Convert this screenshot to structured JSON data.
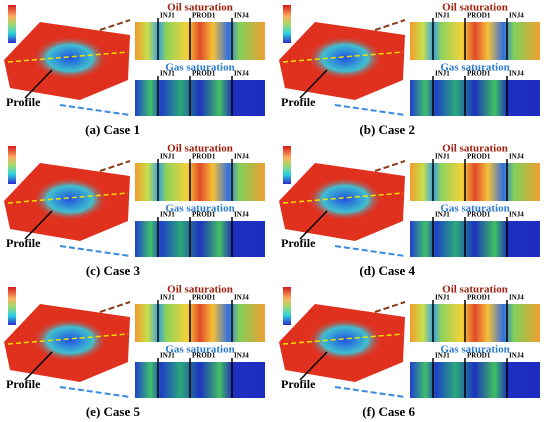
{
  "panels": [
    {
      "caption": "(a) Case 1",
      "oil_label": "Oil saturation",
      "gas_label": "Gas saturation",
      "profile_label": "Profile",
      "wells": [
        "INJ1",
        "PROD1",
        "INJ4"
      ]
    },
    {
      "caption": "(b) Case 2",
      "oil_label": "Oil saturation",
      "gas_label": "Gas saturation",
      "profile_label": "Profile",
      "wells": [
        "INJ1",
        "PROD1",
        "INJ4"
      ]
    },
    {
      "caption": "(c) Case 3",
      "oil_label": "Oil saturation",
      "gas_label": "Gas saturation",
      "profile_label": "Profile",
      "wells": [
        "INJ1",
        "PROD1",
        "INJ4"
      ]
    },
    {
      "caption": "(d) Case 4",
      "oil_label": "Oil saturation",
      "gas_label": "Gas saturation",
      "profile_label": "Profile",
      "wells": [
        "INJ1",
        "PROD1",
        "INJ4"
      ]
    },
    {
      "caption": "(e) Case 5",
      "oil_label": "Oil saturation",
      "gas_label": "Gas saturation",
      "profile_label": "Profile",
      "wells": [
        "INJ1",
        "PROD1",
        "INJ4"
      ]
    },
    {
      "caption": "(f) Case 6",
      "oil_label": "Oil saturation",
      "gas_label": "Gas saturation",
      "profile_label": "Profile",
      "wells": [
        "INJ1",
        "PROD1",
        "INJ4"
      ]
    }
  ]
}
